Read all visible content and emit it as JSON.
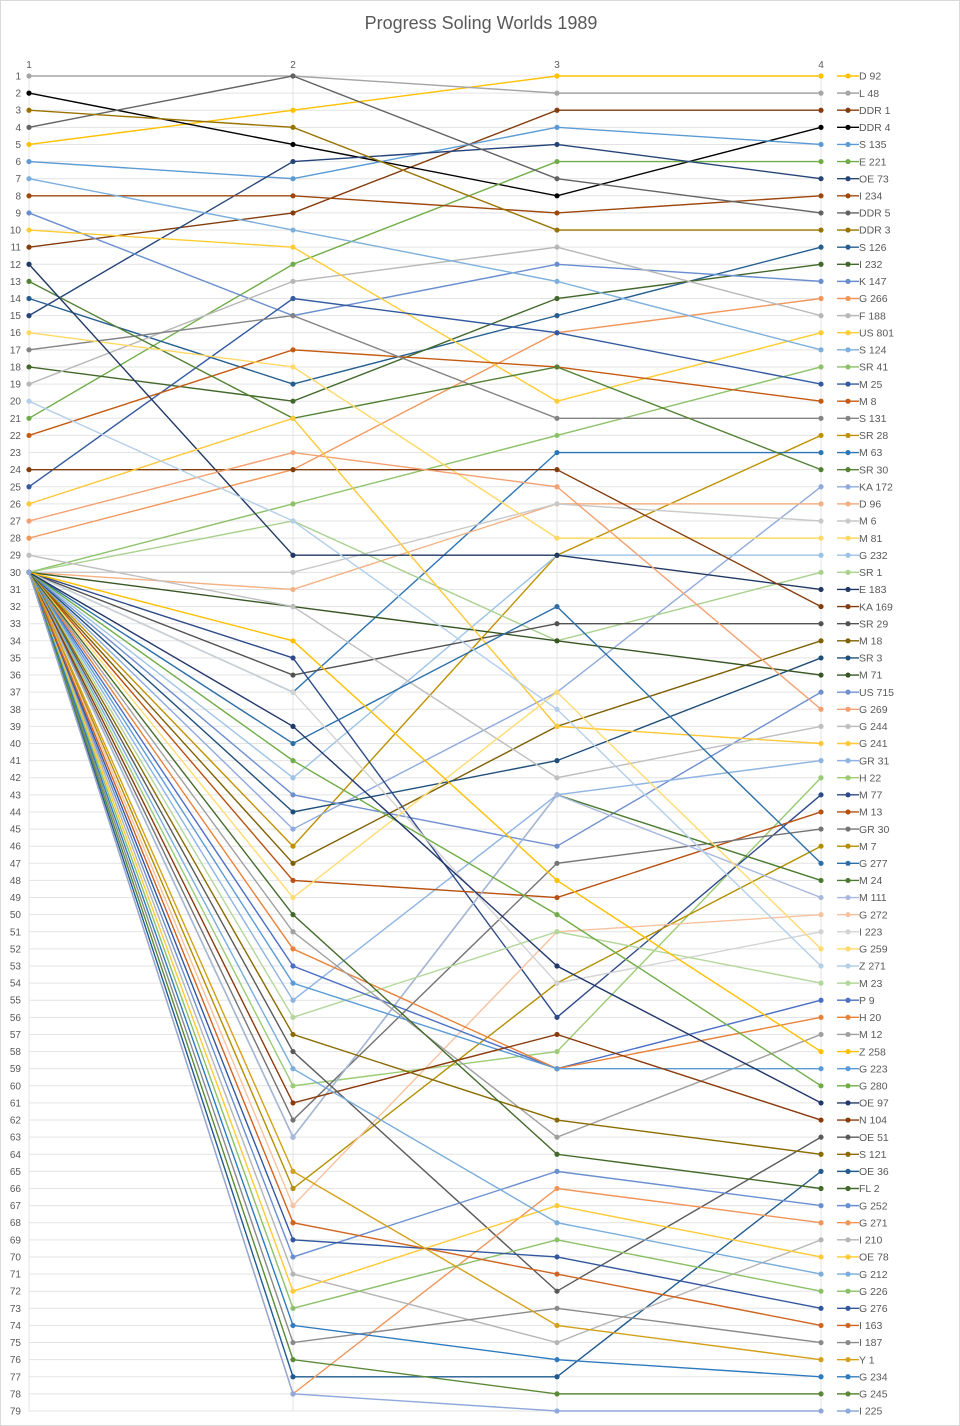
{
  "chart_data": {
    "type": "line",
    "title": "Progress Soling Worlds 1989",
    "x": [
      1,
      2,
      3,
      4
    ],
    "x_tick_labels": [
      "1",
      "2",
      "3",
      "4"
    ],
    "y_range": [
      1,
      79
    ],
    "y_reversed": true,
    "y_tick_labels": [
      "1",
      "2",
      "3",
      "4",
      "5",
      "6",
      "7",
      "8",
      "9",
      "10",
      "11",
      "12",
      "13",
      "14",
      "15",
      "16",
      "17",
      "18",
      "19",
      "20",
      "21",
      "22",
      "23",
      "24",
      "25",
      "26",
      "27",
      "28",
      "29",
      "30",
      "31",
      "32",
      "33",
      "34",
      "35",
      "36",
      "37",
      "38",
      "39",
      "40",
      "41",
      "42",
      "43",
      "44",
      "45",
      "46",
      "47",
      "48",
      "49",
      "50",
      "51",
      "52",
      "53",
      "54",
      "55",
      "56",
      "57",
      "58",
      "59",
      "60",
      "61",
      "62",
      "63",
      "64",
      "65",
      "66",
      "67",
      "68",
      "69",
      "70",
      "71",
      "72",
      "73",
      "74",
      "75",
      "76",
      "77",
      "78",
      "79"
    ],
    "grid": true,
    "legend_position": "right",
    "series": [
      {
        "name": "D 92",
        "color": "#FFC000",
        "values": [
          5,
          3,
          1,
          1
        ]
      },
      {
        "name": "L 48",
        "color": "#A5A5A5",
        "values": [
          1,
          1,
          2,
          2
        ]
      },
      {
        "name": "DDR 1",
        "color": "#843C0C",
        "values": [
          11,
          9,
          3,
          3
        ]
      },
      {
        "name": "DDR 4",
        "color": "#000000",
        "values": [
          2,
          5,
          8,
          4
        ]
      },
      {
        "name": "S 135",
        "color": "#5B9BD5",
        "values": [
          6,
          7,
          4,
          5
        ]
      },
      {
        "name": "E 221",
        "color": "#70AD47",
        "values": [
          21,
          12,
          6,
          6
        ]
      },
      {
        "name": "OE 73",
        "color": "#264478",
        "values": [
          15,
          6,
          5,
          7
        ]
      },
      {
        "name": "I 234",
        "color": "#9E480E",
        "values": [
          8,
          8,
          9,
          8
        ]
      },
      {
        "name": "DDR 5",
        "color": "#636363",
        "values": [
          4,
          1,
          7,
          9
        ]
      },
      {
        "name": "DDR 3",
        "color": "#997300",
        "values": [
          3,
          4,
          10,
          10
        ]
      },
      {
        "name": "S 126",
        "color": "#255E91",
        "values": [
          14,
          19,
          15,
          11
        ]
      },
      {
        "name": "I 232",
        "color": "#43682B",
        "values": [
          18,
          20,
          14,
          12
        ]
      },
      {
        "name": "K 147",
        "color": "#698ED0",
        "values": [
          9,
          15,
          12,
          13
        ]
      },
      {
        "name": "G 266",
        "color": "#F1975A",
        "values": [
          28,
          24,
          16,
          14
        ]
      },
      {
        "name": "F 188",
        "color": "#B7B7B7",
        "values": [
          19,
          13,
          11,
          15
        ]
      },
      {
        "name": "US 801",
        "color": "#FFCD33",
        "values": [
          10,
          11,
          20,
          16
        ]
      },
      {
        "name": "S 124",
        "color": "#7CAFDD",
        "values": [
          7,
          10,
          13,
          17
        ]
      },
      {
        "name": "SR 41",
        "color": "#8CC168",
        "values": [
          30,
          26,
          22,
          18
        ]
      },
      {
        "name": "M 25",
        "color": "#335AA1",
        "values": [
          25,
          14,
          16,
          19
        ]
      },
      {
        "name": "M 8",
        "color": "#C55A11",
        "values": [
          22,
          17,
          18,
          20
        ]
      },
      {
        "name": "S 131",
        "color": "#848484",
        "values": [
          17,
          15,
          21,
          21
        ]
      },
      {
        "name": "SR 28",
        "color": "#BF9000",
        "values": [
          30,
          46,
          29,
          22
        ]
      },
      {
        "name": "M 63",
        "color": "#2E75B6",
        "values": [
          30,
          37,
          23,
          23
        ]
      },
      {
        "name": "SR 30",
        "color": "#548235",
        "values": [
          13,
          21,
          18,
          24
        ]
      },
      {
        "name": "KA 172",
        "color": "#8FAADC",
        "values": [
          30,
          45,
          37,
          25
        ]
      },
      {
        "name": "D 96",
        "color": "#F4B183",
        "values": [
          30,
          31,
          26,
          26
        ]
      },
      {
        "name": "M 6",
        "color": "#C9C9C9",
        "values": [
          30,
          30,
          26,
          27
        ]
      },
      {
        "name": "M 81",
        "color": "#FFD966",
        "values": [
          16,
          18,
          28,
          28
        ]
      },
      {
        "name": "G 232",
        "color": "#9DC3E6",
        "values": [
          30,
          42,
          29,
          29
        ]
      },
      {
        "name": "SR 1",
        "color": "#A9D18E",
        "values": [
          30,
          27,
          34,
          30
        ]
      },
      {
        "name": "E 183",
        "color": "#203864",
        "values": [
          12,
          29,
          29,
          31
        ]
      },
      {
        "name": "KA 169",
        "color": "#843C0C",
        "values": [
          24,
          24,
          24,
          32
        ]
      },
      {
        "name": "SR 29",
        "color": "#525252",
        "values": [
          30,
          36,
          33,
          33
        ]
      },
      {
        "name": "M 18",
        "color": "#7F6000",
        "values": [
          30,
          47,
          39,
          34
        ]
      },
      {
        "name": "SR 3",
        "color": "#1F4E79",
        "values": [
          30,
          44,
          41,
          35
        ]
      },
      {
        "name": "M 71",
        "color": "#375623",
        "values": [
          30,
          32,
          34,
          36
        ]
      },
      {
        "name": "US 715",
        "color": "#6F8FCF",
        "values": [
          30,
          43,
          46,
          37
        ]
      },
      {
        "name": "G 269",
        "color": "#F4A070",
        "values": [
          27,
          23,
          25,
          38
        ]
      },
      {
        "name": "G 244",
        "color": "#BFBFBF",
        "values": [
          29,
          32,
          42,
          39
        ]
      },
      {
        "name": "G 241",
        "color": "#FFC839",
        "values": [
          26,
          21,
          39,
          40
        ]
      },
      {
        "name": "GR 31",
        "color": "#8EB4E3",
        "values": [
          30,
          55,
          43,
          41
        ]
      },
      {
        "name": "H 22",
        "color": "#9BCB73",
        "values": [
          30,
          60,
          58,
          42
        ]
      },
      {
        "name": "M 77",
        "color": "#2F4A8A",
        "values": [
          30,
          35,
          56,
          43
        ]
      },
      {
        "name": "M 13",
        "color": "#B8500F",
        "values": [
          30,
          48,
          49,
          44
        ]
      },
      {
        "name": "GR 30",
        "color": "#747474",
        "values": [
          30,
          62,
          47,
          45
        ]
      },
      {
        "name": "M 7",
        "color": "#B38F00",
        "values": [
          30,
          66,
          54,
          46
        ]
      },
      {
        "name": "G 277",
        "color": "#2C6FA8",
        "values": [
          30,
          40,
          32,
          47
        ]
      },
      {
        "name": "M 24",
        "color": "#4B7A2E",
        "values": [
          30,
          63,
          43,
          48
        ]
      },
      {
        "name": "M 111",
        "color": "#A9B8E0",
        "values": [
          30,
          63,
          43,
          49
        ]
      },
      {
        "name": "G 272",
        "color": "#F8C2A0",
        "values": [
          30,
          67,
          51,
          50
        ]
      },
      {
        "name": "I 223",
        "color": "#D3D3D3",
        "values": [
          30,
          37,
          54,
          51
        ]
      },
      {
        "name": "G 259",
        "color": "#FFDB70",
        "values": [
          30,
          49,
          37,
          52
        ]
      },
      {
        "name": "Z 271",
        "color": "#B4CFEA",
        "values": [
          20,
          27,
          38,
          53
        ]
      },
      {
        "name": "M 23",
        "color": "#B3D69A",
        "values": [
          30,
          56,
          51,
          54
        ]
      },
      {
        "name": "P 9",
        "color": "#4A6FC4",
        "values": [
          30,
          53,
          59,
          55
        ]
      },
      {
        "name": "H 20",
        "color": "#E8823B",
        "values": [
          30,
          52,
          59,
          56
        ]
      },
      {
        "name": "M 12",
        "color": "#A0A0A0",
        "values": [
          30,
          51,
          63,
          57
        ]
      },
      {
        "name": "Z 258",
        "color": "#FFC000",
        "values": [
          30,
          34,
          48,
          58
        ]
      },
      {
        "name": "G 223",
        "color": "#5B9BD5",
        "values": [
          30,
          54,
          59,
          59
        ]
      },
      {
        "name": "G 280",
        "color": "#70AD47",
        "values": [
          30,
          41,
          50,
          60
        ]
      },
      {
        "name": "OE 97",
        "color": "#22376A",
        "values": [
          30,
          39,
          53,
          61
        ]
      },
      {
        "name": "N 104",
        "color": "#8B3A0B",
        "values": [
          30,
          61,
          57,
          62
        ]
      },
      {
        "name": "OE 51",
        "color": "#5A5A5A",
        "values": [
          30,
          58,
          72,
          63
        ]
      },
      {
        "name": "S 121",
        "color": "#8A6B00",
        "values": [
          30,
          57,
          62,
          64
        ]
      },
      {
        "name": "OE 36",
        "color": "#215B8F",
        "values": [
          30,
          77,
          77,
          65
        ]
      },
      {
        "name": "FL 2",
        "color": "#446A2B",
        "values": [
          30,
          50,
          64,
          66
        ]
      },
      {
        "name": "G 252",
        "color": "#6A8FD1",
        "values": [
          30,
          70,
          65,
          67
        ]
      },
      {
        "name": "G 271",
        "color": "#F0955A",
        "values": [
          30,
          78,
          66,
          68
        ]
      },
      {
        "name": "I 210",
        "color": "#B5B5B5",
        "values": [
          30,
          71,
          75,
          69
        ]
      },
      {
        "name": "OE 78",
        "color": "#FFCA33",
        "values": [
          30,
          72,
          67,
          70
        ]
      },
      {
        "name": "G 212",
        "color": "#79ADDC",
        "values": [
          30,
          59,
          68,
          71
        ]
      },
      {
        "name": "G 226",
        "color": "#8BC067",
        "values": [
          30,
          73,
          69,
          72
        ]
      },
      {
        "name": "G 276",
        "color": "#33579E",
        "values": [
          30,
          69,
          70,
          73
        ]
      },
      {
        "name": "I 163",
        "color": "#D06420",
        "values": [
          30,
          68,
          71,
          74
        ]
      },
      {
        "name": "I 187",
        "color": "#8A8A8A",
        "values": [
          30,
          75,
          73,
          75
        ]
      },
      {
        "name": "Y 1",
        "color": "#D4A017",
        "values": [
          30,
          65,
          74,
          76
        ]
      },
      {
        "name": "G 234",
        "color": "#2F7BBF",
        "values": [
          30,
          74,
          76,
          77
        ]
      },
      {
        "name": "G 245",
        "color": "#5A8A38",
        "values": [
          30,
          76,
          78,
          78
        ]
      },
      {
        "name": "I 225",
        "color": "#8FA8DC",
        "values": [
          30,
          78,
          79,
          79
        ]
      }
    ]
  }
}
